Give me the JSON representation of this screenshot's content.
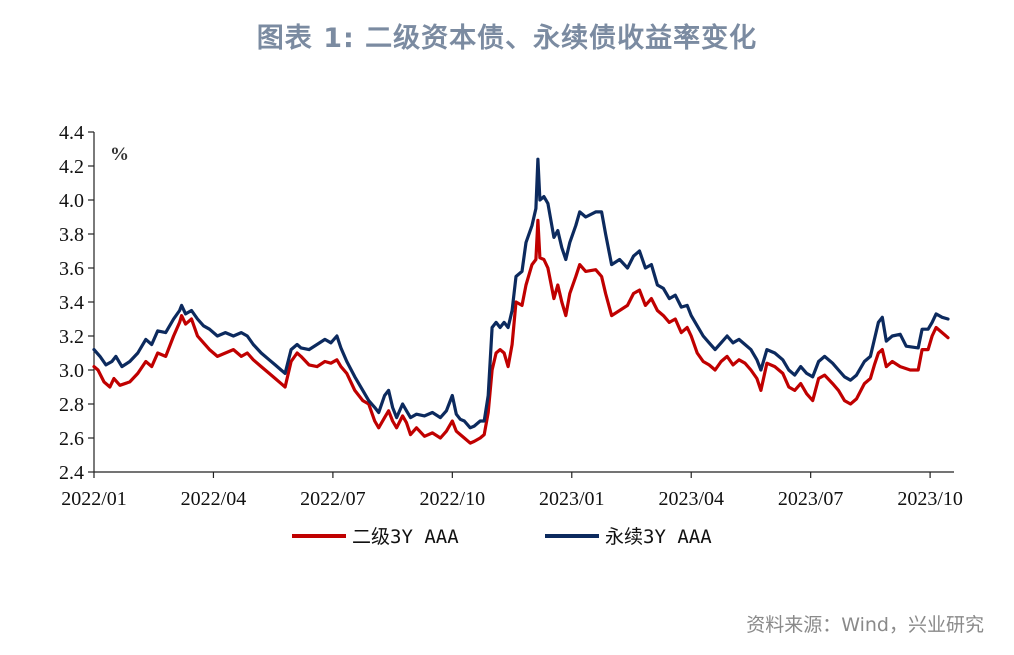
{
  "title": "图表 1:  二级资本债、永续债收益率变化",
  "source": "资料来源：Wind，兴业研究",
  "chart_data": {
    "type": "line",
    "title": "图表 1:  二级资本债、永续债收益率变化",
    "unit_label": "%",
    "xlabel": "",
    "ylabel": "%",
    "ylim": [
      2.4,
      4.4
    ],
    "yticks": [
      "2.4",
      "2.6",
      "2.8",
      "3.0",
      "3.2",
      "3.4",
      "3.6",
      "3.8",
      "4.0",
      "4.2",
      "4.4"
    ],
    "xlim": [
      0,
      21.6
    ],
    "xticks": [
      {
        "label": "2022/01",
        "x": 0
      },
      {
        "label": "2022/04",
        "x": 3
      },
      {
        "label": "2022/07",
        "x": 6
      },
      {
        "label": "2022/10",
        "x": 9
      },
      {
        "label": "2023/01",
        "x": 12
      },
      {
        "label": "2023/04",
        "x": 15
      },
      {
        "label": "2023/07",
        "x": 18
      },
      {
        "label": "2023/10",
        "x": 21
      }
    ],
    "x_unit": "months since 2022/01",
    "legend_position": "bottom",
    "series": [
      {
        "name": "二级3Y AAA",
        "color": "#c00000",
        "points": [
          [
            0.0,
            3.02
          ],
          [
            0.1,
            3.0
          ],
          [
            0.25,
            2.93
          ],
          [
            0.4,
            2.9
          ],
          [
            0.5,
            2.95
          ],
          [
            0.65,
            2.91
          ],
          [
            0.9,
            2.93
          ],
          [
            1.1,
            2.98
          ],
          [
            1.3,
            3.05
          ],
          [
            1.45,
            3.02
          ],
          [
            1.6,
            3.1
          ],
          [
            1.8,
            3.08
          ],
          [
            2.0,
            3.2
          ],
          [
            2.15,
            3.28
          ],
          [
            2.2,
            3.32
          ],
          [
            2.3,
            3.27
          ],
          [
            2.45,
            3.3
          ],
          [
            2.6,
            3.2
          ],
          [
            2.75,
            3.16
          ],
          [
            2.9,
            3.12
          ],
          [
            3.1,
            3.08
          ],
          [
            3.3,
            3.1
          ],
          [
            3.5,
            3.12
          ],
          [
            3.7,
            3.08
          ],
          [
            3.85,
            3.1
          ],
          [
            4.0,
            3.06
          ],
          [
            4.2,
            3.02
          ],
          [
            4.4,
            2.98
          ],
          [
            4.55,
            2.95
          ],
          [
            4.7,
            2.92
          ],
          [
            4.8,
            2.9
          ],
          [
            4.95,
            3.05
          ],
          [
            5.1,
            3.1
          ],
          [
            5.2,
            3.08
          ],
          [
            5.4,
            3.03
          ],
          [
            5.6,
            3.02
          ],
          [
            5.8,
            3.05
          ],
          [
            5.95,
            3.04
          ],
          [
            6.1,
            3.06
          ],
          [
            6.2,
            3.02
          ],
          [
            6.35,
            2.98
          ],
          [
            6.55,
            2.88
          ],
          [
            6.75,
            2.82
          ],
          [
            6.9,
            2.8
          ],
          [
            7.05,
            2.7
          ],
          [
            7.15,
            2.66
          ],
          [
            7.3,
            2.72
          ],
          [
            7.4,
            2.76
          ],
          [
            7.5,
            2.7
          ],
          [
            7.6,
            2.66
          ],
          [
            7.75,
            2.73
          ],
          [
            7.85,
            2.69
          ],
          [
            7.95,
            2.62
          ],
          [
            8.1,
            2.66
          ],
          [
            8.3,
            2.61
          ],
          [
            8.5,
            2.63
          ],
          [
            8.7,
            2.6
          ],
          [
            8.85,
            2.64
          ],
          [
            9.0,
            2.7
          ],
          [
            9.1,
            2.64
          ],
          [
            9.2,
            2.62
          ],
          [
            9.3,
            2.6
          ],
          [
            9.45,
            2.57
          ],
          [
            9.55,
            2.58
          ],
          [
            9.7,
            2.6
          ],
          [
            9.8,
            2.62
          ],
          [
            9.9,
            2.75
          ],
          [
            10.0,
            3.0
          ],
          [
            10.1,
            3.1
          ],
          [
            10.2,
            3.12
          ],
          [
            10.3,
            3.1
          ],
          [
            10.4,
            3.02
          ],
          [
            10.5,
            3.15
          ],
          [
            10.6,
            3.4
          ],
          [
            10.75,
            3.38
          ],
          [
            10.85,
            3.5
          ],
          [
            11.0,
            3.62
          ],
          [
            11.1,
            3.65
          ],
          [
            11.15,
            3.88
          ],
          [
            11.2,
            3.66
          ],
          [
            11.3,
            3.65
          ],
          [
            11.4,
            3.6
          ],
          [
            11.55,
            3.42
          ],
          [
            11.65,
            3.5
          ],
          [
            11.75,
            3.4
          ],
          [
            11.85,
            3.32
          ],
          [
            11.95,
            3.45
          ],
          [
            12.1,
            3.55
          ],
          [
            12.2,
            3.62
          ],
          [
            12.35,
            3.58
          ],
          [
            12.6,
            3.59
          ],
          [
            12.75,
            3.55
          ],
          [
            12.85,
            3.45
          ],
          [
            13.0,
            3.32
          ],
          [
            13.2,
            3.35
          ],
          [
            13.4,
            3.38
          ],
          [
            13.55,
            3.45
          ],
          [
            13.7,
            3.47
          ],
          [
            13.85,
            3.38
          ],
          [
            14.0,
            3.42
          ],
          [
            14.15,
            3.35
          ],
          [
            14.3,
            3.32
          ],
          [
            14.45,
            3.28
          ],
          [
            14.6,
            3.3
          ],
          [
            14.75,
            3.22
          ],
          [
            14.9,
            3.25
          ],
          [
            15.0,
            3.2
          ],
          [
            15.15,
            3.1
          ],
          [
            15.3,
            3.05
          ],
          [
            15.45,
            3.03
          ],
          [
            15.6,
            3.0
          ],
          [
            15.75,
            3.05
          ],
          [
            15.9,
            3.08
          ],
          [
            16.05,
            3.03
          ],
          [
            16.2,
            3.06
          ],
          [
            16.35,
            3.04
          ],
          [
            16.5,
            3.0
          ],
          [
            16.65,
            2.95
          ],
          [
            16.75,
            2.88
          ],
          [
            16.9,
            3.04
          ],
          [
            17.1,
            3.02
          ],
          [
            17.3,
            2.98
          ],
          [
            17.45,
            2.9
          ],
          [
            17.6,
            2.88
          ],
          [
            17.75,
            2.92
          ],
          [
            17.9,
            2.86
          ],
          [
            18.05,
            2.82
          ],
          [
            18.2,
            2.95
          ],
          [
            18.35,
            2.97
          ],
          [
            18.55,
            2.92
          ],
          [
            18.7,
            2.88
          ],
          [
            18.85,
            2.82
          ],
          [
            19.0,
            2.8
          ],
          [
            19.15,
            2.83
          ],
          [
            19.35,
            2.92
          ],
          [
            19.5,
            2.95
          ],
          [
            19.6,
            3.03
          ],
          [
            19.7,
            3.1
          ],
          [
            19.8,
            3.12
          ],
          [
            19.9,
            3.02
          ],
          [
            20.05,
            3.05
          ],
          [
            20.25,
            3.02
          ],
          [
            20.5,
            3.0
          ],
          [
            20.7,
            3.0
          ],
          [
            20.8,
            3.12
          ],
          [
            20.95,
            3.12
          ],
          [
            21.05,
            3.2
          ],
          [
            21.15,
            3.25
          ],
          [
            21.3,
            3.22
          ],
          [
            21.45,
            3.19
          ]
        ]
      },
      {
        "name": "永续3Y AAA",
        "color": "#0c2a5e",
        "points": [
          [
            0.0,
            3.12
          ],
          [
            0.15,
            3.08
          ],
          [
            0.3,
            3.03
          ],
          [
            0.45,
            3.05
          ],
          [
            0.55,
            3.08
          ],
          [
            0.7,
            3.02
          ],
          [
            0.9,
            3.05
          ],
          [
            1.1,
            3.1
          ],
          [
            1.3,
            3.18
          ],
          [
            1.45,
            3.15
          ],
          [
            1.6,
            3.23
          ],
          [
            1.8,
            3.22
          ],
          [
            2.0,
            3.3
          ],
          [
            2.15,
            3.35
          ],
          [
            2.2,
            3.38
          ],
          [
            2.3,
            3.33
          ],
          [
            2.45,
            3.35
          ],
          [
            2.6,
            3.3
          ],
          [
            2.75,
            3.26
          ],
          [
            2.9,
            3.24
          ],
          [
            3.1,
            3.2
          ],
          [
            3.3,
            3.22
          ],
          [
            3.5,
            3.2
          ],
          [
            3.7,
            3.22
          ],
          [
            3.85,
            3.2
          ],
          [
            4.0,
            3.15
          ],
          [
            4.2,
            3.1
          ],
          [
            4.4,
            3.06
          ],
          [
            4.55,
            3.03
          ],
          [
            4.7,
            3.0
          ],
          [
            4.8,
            2.98
          ],
          [
            4.95,
            3.12
          ],
          [
            5.1,
            3.15
          ],
          [
            5.2,
            3.13
          ],
          [
            5.4,
            3.12
          ],
          [
            5.6,
            3.15
          ],
          [
            5.8,
            3.18
          ],
          [
            5.95,
            3.16
          ],
          [
            6.1,
            3.2
          ],
          [
            6.2,
            3.13
          ],
          [
            6.35,
            3.05
          ],
          [
            6.55,
            2.96
          ],
          [
            6.75,
            2.88
          ],
          [
            6.9,
            2.82
          ],
          [
            7.05,
            2.78
          ],
          [
            7.15,
            2.75
          ],
          [
            7.3,
            2.85
          ],
          [
            7.4,
            2.88
          ],
          [
            7.5,
            2.78
          ],
          [
            7.6,
            2.72
          ],
          [
            7.75,
            2.8
          ],
          [
            7.85,
            2.76
          ],
          [
            7.95,
            2.72
          ],
          [
            8.1,
            2.74
          ],
          [
            8.3,
            2.73
          ],
          [
            8.5,
            2.75
          ],
          [
            8.7,
            2.72
          ],
          [
            8.85,
            2.76
          ],
          [
            9.0,
            2.85
          ],
          [
            9.1,
            2.74
          ],
          [
            9.2,
            2.71
          ],
          [
            9.3,
            2.7
          ],
          [
            9.45,
            2.66
          ],
          [
            9.55,
            2.67
          ],
          [
            9.7,
            2.7
          ],
          [
            9.8,
            2.7
          ],
          [
            9.9,
            2.85
          ],
          [
            10.0,
            3.25
          ],
          [
            10.1,
            3.28
          ],
          [
            10.2,
            3.25
          ],
          [
            10.3,
            3.28
          ],
          [
            10.4,
            3.25
          ],
          [
            10.5,
            3.35
          ],
          [
            10.6,
            3.55
          ],
          [
            10.75,
            3.58
          ],
          [
            10.85,
            3.75
          ],
          [
            11.0,
            3.85
          ],
          [
            11.1,
            3.95
          ],
          [
            11.15,
            4.24
          ],
          [
            11.2,
            4.0
          ],
          [
            11.3,
            4.02
          ],
          [
            11.4,
            3.98
          ],
          [
            11.55,
            3.78
          ],
          [
            11.65,
            3.82
          ],
          [
            11.75,
            3.72
          ],
          [
            11.85,
            3.65
          ],
          [
            11.95,
            3.75
          ],
          [
            12.1,
            3.85
          ],
          [
            12.2,
            3.93
          ],
          [
            12.35,
            3.9
          ],
          [
            12.6,
            3.93
          ],
          [
            12.75,
            3.93
          ],
          [
            12.85,
            3.8
          ],
          [
            13.0,
            3.62
          ],
          [
            13.2,
            3.65
          ],
          [
            13.4,
            3.6
          ],
          [
            13.55,
            3.67
          ],
          [
            13.7,
            3.7
          ],
          [
            13.85,
            3.6
          ],
          [
            14.0,
            3.62
          ],
          [
            14.15,
            3.5
          ],
          [
            14.3,
            3.48
          ],
          [
            14.45,
            3.42
          ],
          [
            14.6,
            3.44
          ],
          [
            14.75,
            3.37
          ],
          [
            14.9,
            3.38
          ],
          [
            15.0,
            3.32
          ],
          [
            15.15,
            3.26
          ],
          [
            15.3,
            3.2
          ],
          [
            15.45,
            3.16
          ],
          [
            15.6,
            3.12
          ],
          [
            15.75,
            3.16
          ],
          [
            15.9,
            3.2
          ],
          [
            16.05,
            3.16
          ],
          [
            16.2,
            3.18
          ],
          [
            16.35,
            3.15
          ],
          [
            16.5,
            3.12
          ],
          [
            16.65,
            3.06
          ],
          [
            16.75,
            3.0
          ],
          [
            16.9,
            3.12
          ],
          [
            17.1,
            3.1
          ],
          [
            17.3,
            3.06
          ],
          [
            17.45,
            3.0
          ],
          [
            17.6,
            2.97
          ],
          [
            17.75,
            3.02
          ],
          [
            17.9,
            2.98
          ],
          [
            18.05,
            2.96
          ],
          [
            18.2,
            3.05
          ],
          [
            18.35,
            3.08
          ],
          [
            18.55,
            3.04
          ],
          [
            18.7,
            3.0
          ],
          [
            18.85,
            2.96
          ],
          [
            19.0,
            2.94
          ],
          [
            19.15,
            2.97
          ],
          [
            19.35,
            3.05
          ],
          [
            19.5,
            3.08
          ],
          [
            19.6,
            3.18
          ],
          [
            19.7,
            3.28
          ],
          [
            19.8,
            3.31
          ],
          [
            19.9,
            3.17
          ],
          [
            20.05,
            3.2
          ],
          [
            20.25,
            3.21
          ],
          [
            20.4,
            3.14
          ],
          [
            20.7,
            3.13
          ],
          [
            20.8,
            3.24
          ],
          [
            20.95,
            3.24
          ],
          [
            21.05,
            3.28
          ],
          [
            21.15,
            3.33
          ],
          [
            21.3,
            3.31
          ],
          [
            21.45,
            3.3
          ]
        ]
      }
    ]
  }
}
